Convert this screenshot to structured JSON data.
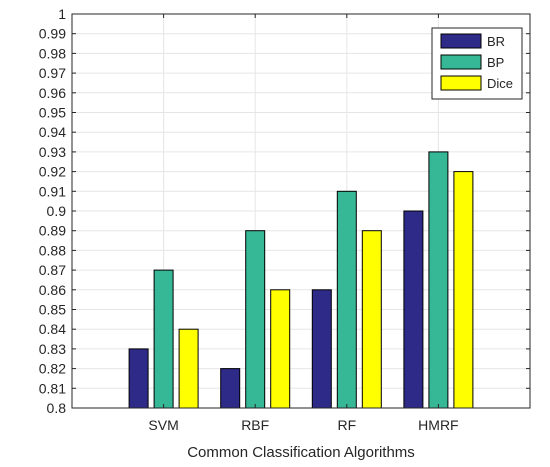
{
  "chart_data": {
    "type": "bar",
    "title": "",
    "xlabel": "Common Classification Algorithms",
    "ylabel": "",
    "categories": [
      "SVM",
      "RBF",
      "RF",
      "HMRF"
    ],
    "series": [
      {
        "name": "BR",
        "color": "#2e2a87",
        "values": [
          0.83,
          0.82,
          0.86,
          0.9
        ]
      },
      {
        "name": "BP",
        "color": "#36b795",
        "values": [
          0.87,
          0.89,
          0.91,
          0.93
        ]
      },
      {
        "name": "Dice",
        "color": "#ffff00",
        "values": [
          0.84,
          0.86,
          0.89,
          0.92
        ]
      }
    ],
    "ylim": [
      0.8,
      1.0
    ],
    "yticks": [
      "0.8",
      "0.81",
      "0.82",
      "0.83",
      "0.84",
      "0.85",
      "0.86",
      "0.87",
      "0.88",
      "0.89",
      "0.9",
      "0.91",
      "0.92",
      "0.93",
      "0.94",
      "0.95",
      "0.96",
      "0.97",
      "0.98",
      "0.99",
      "1"
    ],
    "grid": true,
    "legend_position": "top-right"
  }
}
